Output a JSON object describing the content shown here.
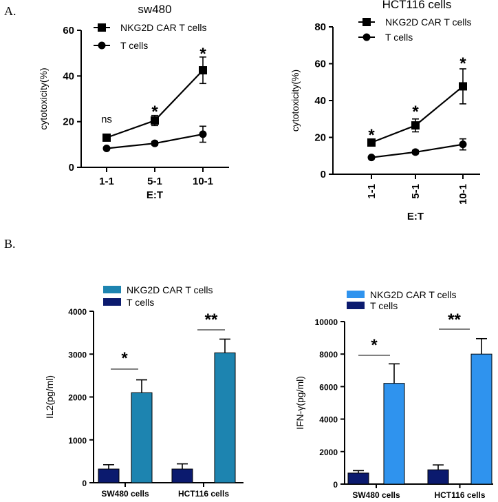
{
  "panel_labels": {
    "a": "A.",
    "b": "B."
  },
  "chart_data": [
    {
      "id": "sw480",
      "type": "line",
      "title": "sw480",
      "xlabel": "E:T",
      "ylabel": "cytotoxicity(%)",
      "categories": [
        "1-1",
        "5-1",
        "10-1"
      ],
      "ylim": [
        0,
        60
      ],
      "yticks": [
        0,
        20,
        40,
        60
      ],
      "legend": "top-center",
      "series": [
        {
          "name": "NKG2D CAR T cells",
          "marker": "square",
          "values": [
            13,
            20.5,
            42.5
          ],
          "errors": [
            0.8,
            2.2,
            5.8
          ]
        },
        {
          "name": "T cells",
          "marker": "circle",
          "values": [
            8.3,
            10.5,
            14.5
          ],
          "errors": [
            0.6,
            0.8,
            3.5
          ]
        }
      ],
      "annotations": [
        "ns",
        "*",
        "*"
      ]
    },
    {
      "id": "hct116",
      "type": "line",
      "title": "HCT116 cells",
      "xlabel": "E:T",
      "ylabel": "cytotoxicity(%)",
      "categories": [
        "1-1",
        "5-1",
        "10-1"
      ],
      "ylim": [
        0,
        80
      ],
      "yticks": [
        0,
        20,
        40,
        60,
        80
      ],
      "legend": "top-center",
      "series": [
        {
          "name": "NKG2D CAR T cells",
          "marker": "square",
          "values": [
            17.2,
            26.5,
            47.7
          ],
          "errors": [
            1.2,
            3.5,
            9.5
          ]
        },
        {
          "name": "T cells",
          "marker": "circle",
          "values": [
            9.1,
            12,
            16.2
          ],
          "errors": [
            0.7,
            1,
            3
          ]
        }
      ],
      "annotations": [
        "*",
        "*",
        "*"
      ]
    },
    {
      "id": "il2",
      "type": "bar",
      "ylabel": "IL2(pg/ml)",
      "categories": [
        "SW480 cells",
        "HCT116 cells"
      ],
      "ylim": [
        0,
        4000
      ],
      "yticks": [
        0,
        1000,
        2000,
        3000,
        4000
      ],
      "legend": "top-left",
      "series": [
        {
          "name": "T cells",
          "color": "#0b1a6e",
          "values": [
            320,
            320
          ],
          "errors": [
            100,
            120
          ]
        },
        {
          "name": "NKG2D CAR T cells",
          "color": "#1d84b0",
          "values": [
            2100,
            3030
          ],
          "errors": [
            300,
            320
          ]
        }
      ],
      "legend_order": [
        "NKG2D CAR T cells",
        "T cells"
      ],
      "annotations": [
        "*",
        "**"
      ]
    },
    {
      "id": "ifng",
      "type": "bar",
      "ylabel": "IFN-γ(pg/ml)",
      "categories": [
        "SW480 cells",
        "HCT116 cells"
      ],
      "ylim": [
        0,
        10000
      ],
      "yticks": [
        0,
        2000,
        4000,
        6000,
        8000,
        10000
      ],
      "legend": "top-left",
      "series": [
        {
          "name": "T cells",
          "color": "#0b1a6e",
          "values": [
            680,
            880
          ],
          "errors": [
            150,
            300
          ]
        },
        {
          "name": "NKG2D CAR T cells",
          "color": "#2f93ee",
          "values": [
            6200,
            8000
          ],
          "errors": [
            1200,
            950
          ]
        }
      ],
      "legend_order": [
        "NKG2D CAR T cells",
        "T cells"
      ],
      "annotations": [
        "*",
        "**"
      ]
    }
  ]
}
